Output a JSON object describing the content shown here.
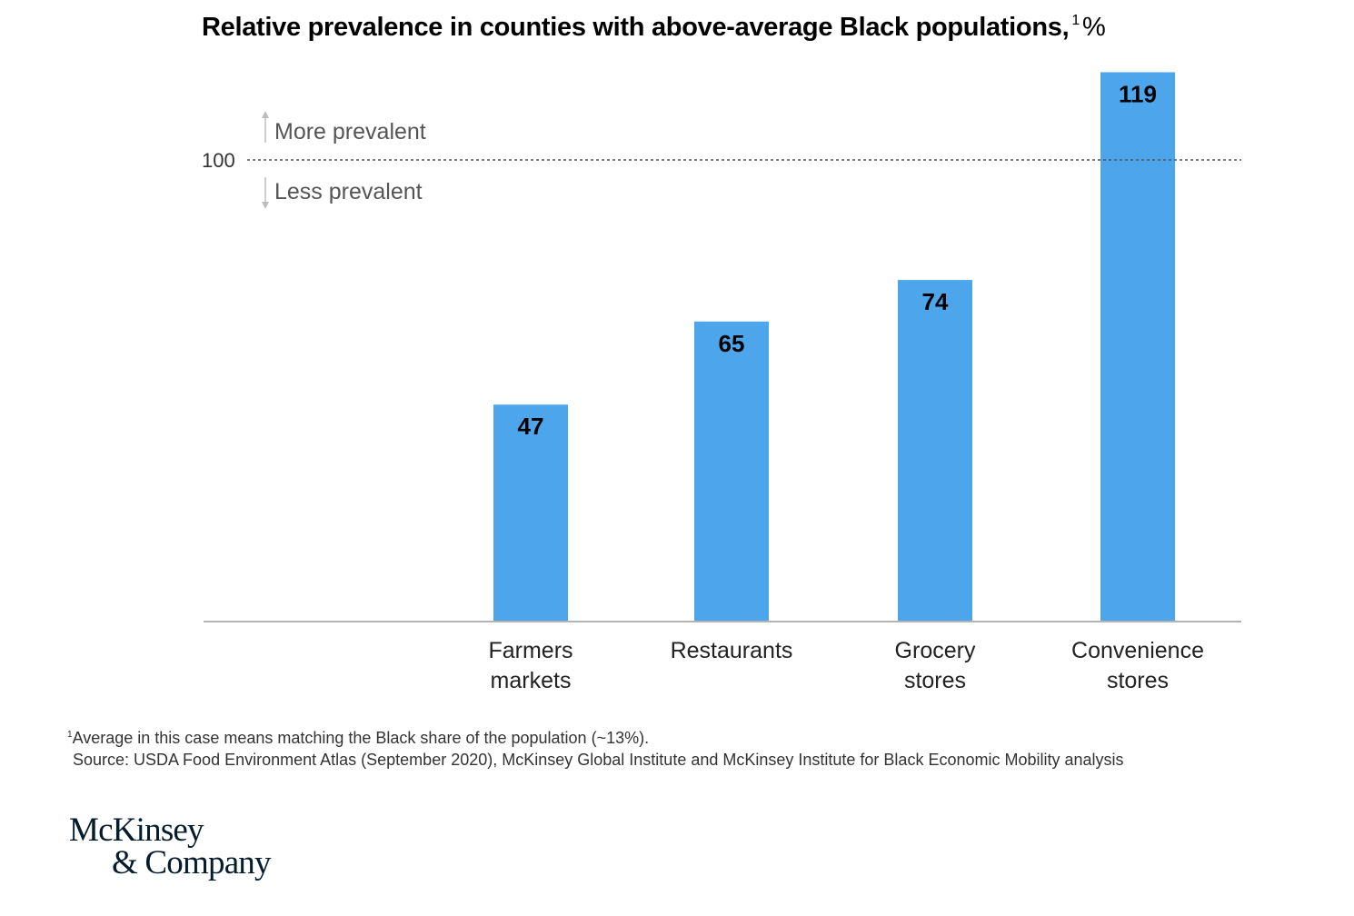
{
  "chart_data": {
    "type": "bar",
    "title": "Relative prevalence in counties with above-average Black populations,",
    "title_footnote_marker": "1",
    "title_unit": "%",
    "categories": [
      [
        "Farmers",
        "markets"
      ],
      [
        "Restaurants"
      ],
      [
        "Grocery",
        "stores"
      ],
      [
        "Convenience",
        "stores"
      ]
    ],
    "values": [
      47,
      65,
      74,
      119
    ],
    "bar_color": "#4da6ec",
    "ylim": [
      0,
      125
    ],
    "grid": false,
    "reference_line": {
      "value": 100,
      "label": "100",
      "style": "dotted"
    },
    "annotations": {
      "above": "More prevalent",
      "below": "Less prevalent"
    },
    "xlabel": "",
    "ylabel": ""
  },
  "footnote": {
    "marker": "1",
    "text": "Average in this case means matching the Black share of the population (~13%).",
    "source": "Source: USDA Food Environment Atlas (September 2020), McKinsey Global Institute and McKinsey Institute for Black Economic Mobility analysis"
  },
  "logo": {
    "line1": "McKinsey",
    "line2": "& Company"
  }
}
